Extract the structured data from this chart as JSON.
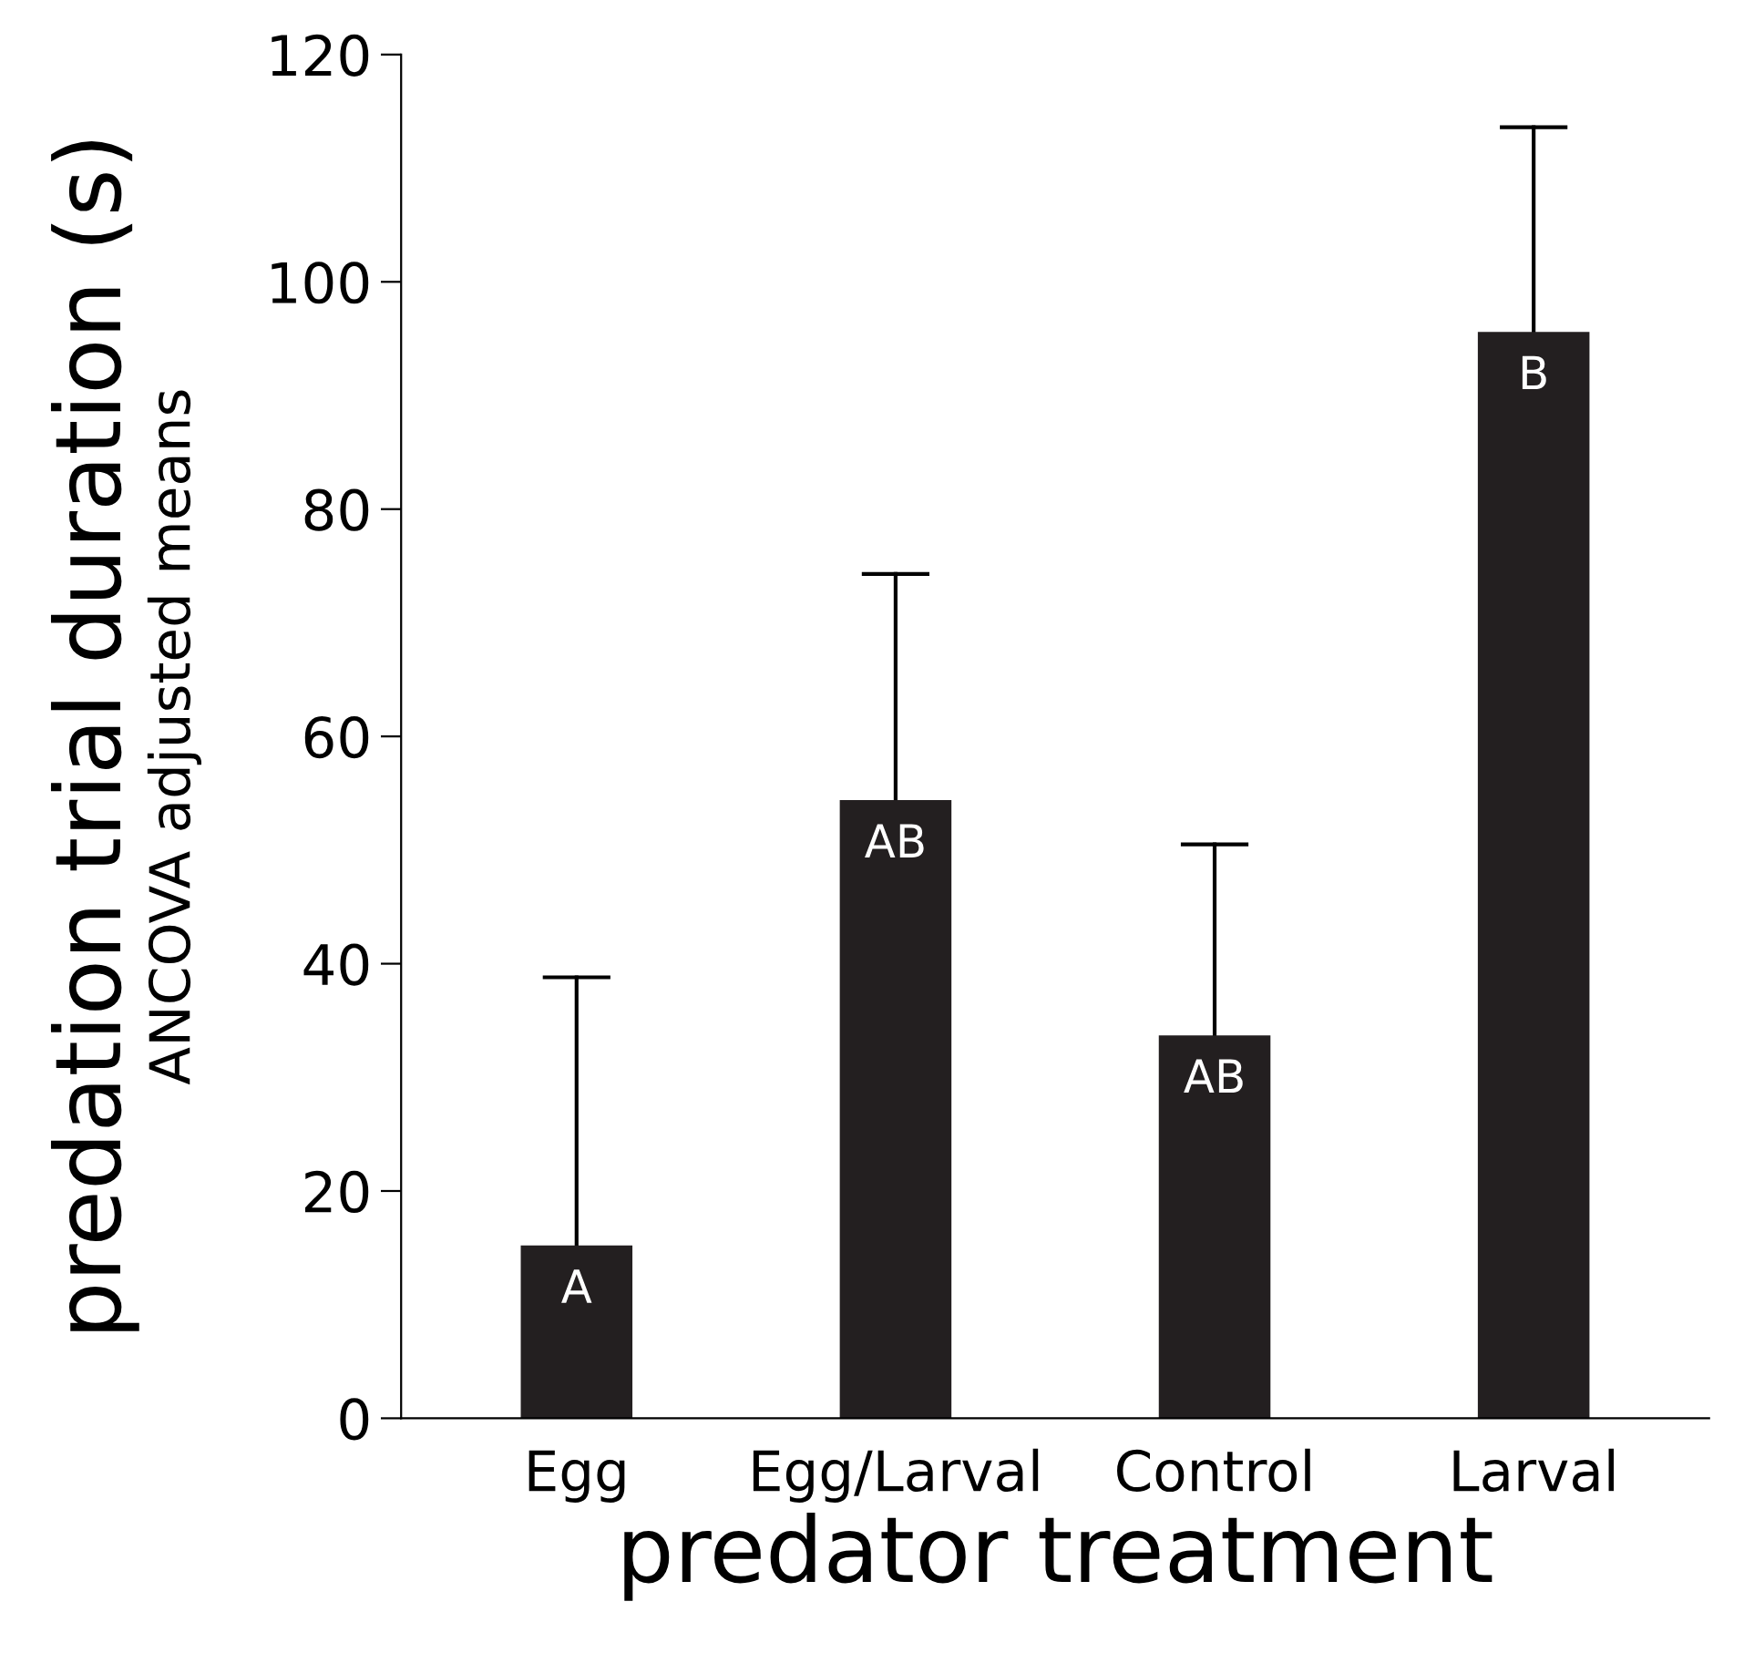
{
  "chart_data": {
    "type": "bar",
    "xlabel": "predator treatment",
    "ylabel": "predation trial duration (s)",
    "subtitle": "ANCOVA adjusted means",
    "categories": [
      "Egg",
      "Egg/Larval",
      "Control",
      "Larval"
    ],
    "values": [
      15.2,
      54.4,
      33.7,
      95.6
    ],
    "errors": [
      [
        15.2,
        38.8
      ],
      [
        54.4,
        74.3
      ],
      [
        33.7,
        50.5
      ],
      [
        95.6,
        113.6
      ]
    ],
    "color": "#231f20",
    "ylim": [
      0,
      120
    ],
    "yticks": [
      0,
      20,
      40,
      60,
      80,
      100,
      120
    ],
    "grid": false,
    "annotations": [
      {
        "text": "A",
        "x": "Egg",
        "y": 15.2
      },
      {
        "text": "AB",
        "x": "Egg/Larval",
        "y": 54.4
      },
      {
        "text": "AB",
        "x": "Control",
        "y": 33.7
      },
      {
        "text": "B",
        "x": "Larval",
        "y": 95.6
      }
    ]
  }
}
